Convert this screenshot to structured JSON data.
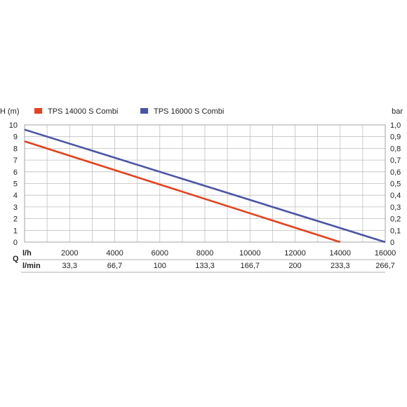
{
  "chart_data": {
    "type": "line",
    "y_label_left": "H (m)",
    "y_label_right": "bar",
    "q_label": "Q",
    "x_unit_lh": "l/h",
    "x_unit_lmin": "l/min",
    "xlim": [
      0,
      16000
    ],
    "ylim": [
      0,
      10
    ],
    "ylim_right": [
      0,
      1.0
    ],
    "x_ticks_lh": [
      "2000",
      "4000",
      "6000",
      "8000",
      "10000",
      "12000",
      "14000",
      "16000"
    ],
    "x_ticks_lmin": [
      "33,3",
      "66,7",
      "100",
      "133,3",
      "166,7",
      "200",
      "233,3",
      "266,7"
    ],
    "y_ticks_left": [
      "0",
      "1",
      "2",
      "3",
      "4",
      "5",
      "6",
      "7",
      "8",
      "9",
      "10"
    ],
    "y_ticks_right": [
      "0",
      "0,1",
      "0,2",
      "0,3",
      "0,4",
      "0,5",
      "0,6",
      "0,7",
      "0,8",
      "0,9",
      "1,0"
    ],
    "grid": true,
    "legend_position": "top-left",
    "series": [
      {
        "name": "TPS 14000 S Combi",
        "color": "#e8401c",
        "x": [
          0,
          14000
        ],
        "y": [
          8.6,
          0
        ]
      },
      {
        "name": "TPS 16000 S Combi",
        "color": "#4a54a6",
        "x": [
          0,
          16000
        ],
        "y": [
          9.6,
          0
        ]
      }
    ]
  }
}
